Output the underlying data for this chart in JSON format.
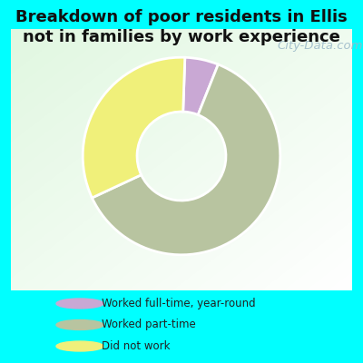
{
  "title": "Breakdown of poor residents in Ellis\nnot in families by work experience",
  "title_fontsize": 13,
  "title_color": "#111111",
  "title_fontweight": "bold",
  "background_color": "#00FFFF",
  "slices": [
    {
      "label": "Worked full-time, year-round",
      "value": 5.5,
      "color": "#c9a8d4"
    },
    {
      "label": "Worked part-time",
      "value": 62.0,
      "color": "#b8c4a0"
    },
    {
      "label": "Did not work",
      "value": 32.5,
      "color": "#f0f07a"
    }
  ],
  "donut_width": 0.55,
  "legend_colors": [
    "#c9a8d4",
    "#b8c4a0",
    "#f0f07a"
  ],
  "legend_labels": [
    "Worked full-time, year-round",
    "Worked part-time",
    "Did not work"
  ],
  "watermark": "City-Data.com",
  "watermark_color": "#9ab8c8",
  "watermark_fontsize": 9.5,
  "start_angle": 88
}
